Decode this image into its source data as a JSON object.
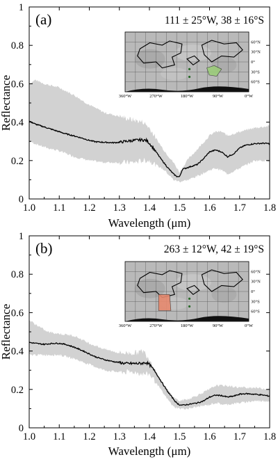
{
  "chart_data": [
    {
      "type": "line",
      "panel_label": "(a)",
      "annotation": "111 ± 25°W, 38 ± 16°S",
      "xlabel": "Wavelength (μm)",
      "ylabel": "Reflectance",
      "xlim": [
        1.0,
        1.8
      ],
      "ylim": [
        0,
        1
      ],
      "xticks": [
        "1.0",
        "1.1",
        "1.2",
        "1.3",
        "1.4",
        "1.5",
        "1.6",
        "1.7",
        "1.8"
      ],
      "yticks": [
        "0",
        "0.2",
        "0.4",
        "0.6",
        "0.8",
        "1"
      ],
      "grid": false,
      "series": [
        {
          "role": "mean",
          "color": "#000000",
          "x": [
            1.0,
            1.02,
            1.05,
            1.08,
            1.1,
            1.12,
            1.15,
            1.18,
            1.2,
            1.22,
            1.25,
            1.28,
            1.3,
            1.32,
            1.35,
            1.37,
            1.39,
            1.4,
            1.42,
            1.44,
            1.46,
            1.48,
            1.49,
            1.5,
            1.51,
            1.53,
            1.56,
            1.58,
            1.6,
            1.62,
            1.64,
            1.66,
            1.68,
            1.7,
            1.72,
            1.75,
            1.78,
            1.8
          ],
          "values": [
            0.405,
            0.39,
            0.375,
            0.36,
            0.35,
            0.34,
            0.328,
            0.315,
            0.305,
            0.298,
            0.295,
            0.293,
            0.295,
            0.3,
            0.305,
            0.308,
            0.305,
            0.29,
            0.25,
            0.205,
            0.165,
            0.13,
            0.118,
            0.115,
            0.155,
            0.165,
            0.18,
            0.21,
            0.245,
            0.255,
            0.245,
            0.22,
            0.235,
            0.265,
            0.28,
            0.288,
            0.29,
            0.288
          ]
        },
        {
          "role": "spread-upper",
          "color": "#d2d2d2",
          "x": [
            1.0,
            1.02,
            1.05,
            1.1,
            1.15,
            1.2,
            1.25,
            1.3,
            1.35,
            1.38,
            1.4,
            1.42,
            1.45,
            1.48,
            1.5,
            1.53,
            1.56,
            1.6,
            1.62,
            1.64,
            1.66,
            1.7,
            1.75,
            1.8
          ],
          "values": [
            0.6,
            0.62,
            0.6,
            0.58,
            0.54,
            0.49,
            0.45,
            0.43,
            0.41,
            0.4,
            0.37,
            0.32,
            0.25,
            0.19,
            0.14,
            0.21,
            0.26,
            0.33,
            0.35,
            0.35,
            0.33,
            0.35,
            0.37,
            0.38
          ]
        },
        {
          "role": "spread-lower",
          "color": "#d2d2d2",
          "x": [
            1.0,
            1.05,
            1.1,
            1.15,
            1.2,
            1.25,
            1.3,
            1.35,
            1.38,
            1.4,
            1.42,
            1.45,
            1.48,
            1.5,
            1.53,
            1.56,
            1.6,
            1.62,
            1.64,
            1.66,
            1.7,
            1.75,
            1.8
          ],
          "values": [
            0.3,
            0.27,
            0.25,
            0.22,
            0.2,
            0.19,
            0.19,
            0.19,
            0.2,
            0.2,
            0.18,
            0.15,
            0.1,
            0.09,
            0.1,
            0.12,
            0.15,
            0.16,
            0.15,
            0.13,
            0.16,
            0.2,
            0.2
          ]
        }
      ],
      "inset_map": {
        "xlabels": [
          "360°W",
          "270°W",
          "180°W",
          "90°W",
          "0°W"
        ],
        "ylabels": [
          "60°N",
          "30°N",
          "0°",
          "30°S",
          "60°S"
        ],
        "region_color": "#9ccc7a"
      }
    },
    {
      "type": "line",
      "panel_label": "(b)",
      "annotation": "263 ± 12°W, 42 ± 19°S",
      "xlabel": "Wavelength (μm)",
      "ylabel": "Reflectance",
      "xlim": [
        1.0,
        1.8
      ],
      "ylim": [
        0,
        1
      ],
      "xticks": [
        "1.0",
        "1.1",
        "1.2",
        "1.3",
        "1.4",
        "1.5",
        "1.6",
        "1.7",
        "1.8"
      ],
      "yticks": [
        "0",
        "0.2",
        "0.4",
        "0.6",
        "0.8",
        "1"
      ],
      "grid": false,
      "series": [
        {
          "role": "mean",
          "color": "#000000",
          "x": [
            1.0,
            1.02,
            1.05,
            1.08,
            1.1,
            1.12,
            1.15,
            1.18,
            1.2,
            1.22,
            1.25,
            1.28,
            1.3,
            1.32,
            1.35,
            1.37,
            1.39,
            1.4,
            1.42,
            1.44,
            1.46,
            1.48,
            1.49,
            1.5,
            1.51,
            1.53,
            1.56,
            1.58,
            1.6,
            1.62,
            1.64,
            1.66,
            1.68,
            1.7,
            1.72,
            1.75,
            1.78,
            1.8
          ],
          "values": [
            0.445,
            0.44,
            0.435,
            0.44,
            0.44,
            0.435,
            0.42,
            0.4,
            0.385,
            0.37,
            0.355,
            0.345,
            0.34,
            0.335,
            0.335,
            0.335,
            0.34,
            0.33,
            0.29,
            0.24,
            0.19,
            0.15,
            0.13,
            0.12,
            0.118,
            0.122,
            0.13,
            0.14,
            0.16,
            0.17,
            0.168,
            0.16,
            0.165,
            0.175,
            0.178,
            0.175,
            0.17,
            0.165
          ]
        },
        {
          "role": "spread-upper",
          "color": "#d2d2d2",
          "x": [
            1.0,
            1.03,
            1.06,
            1.1,
            1.15,
            1.2,
            1.25,
            1.3,
            1.35,
            1.38,
            1.4,
            1.42,
            1.45,
            1.48,
            1.5,
            1.53,
            1.56,
            1.6,
            1.62,
            1.65,
            1.7,
            1.75,
            1.8
          ],
          "values": [
            0.56,
            0.53,
            0.5,
            0.49,
            0.48,
            0.44,
            0.41,
            0.39,
            0.39,
            0.4,
            0.36,
            0.3,
            0.22,
            0.16,
            0.14,
            0.15,
            0.17,
            0.2,
            0.22,
            0.22,
            0.21,
            0.21,
            0.2
          ]
        },
        {
          "role": "spread-lower",
          "color": "#d2d2d2",
          "x": [
            1.0,
            1.05,
            1.1,
            1.15,
            1.2,
            1.25,
            1.3,
            1.35,
            1.38,
            1.4,
            1.42,
            1.45,
            1.48,
            1.5,
            1.53,
            1.56,
            1.6,
            1.62,
            1.65,
            1.7,
            1.75,
            1.8
          ],
          "values": [
            0.38,
            0.38,
            0.38,
            0.36,
            0.33,
            0.3,
            0.29,
            0.29,
            0.28,
            0.28,
            0.24,
            0.17,
            0.11,
            0.1,
            0.1,
            0.11,
            0.12,
            0.13,
            0.12,
            0.13,
            0.14,
            0.14
          ]
        }
      ],
      "inset_map": {
        "xlabels": [
          "360°W",
          "270°W",
          "180°W",
          "90°W",
          "0°W"
        ],
        "ylabels": [
          "60°N",
          "30°N",
          "0°",
          "30°S",
          "60°S"
        ],
        "region_color": "#e6896e"
      }
    }
  ]
}
